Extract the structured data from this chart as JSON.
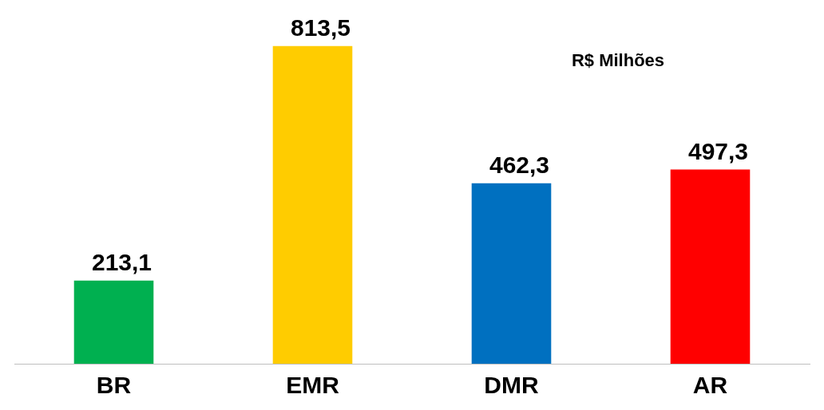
{
  "chart_data": {
    "type": "bar",
    "categories": [
      "BR",
      "EMR",
      "DMR",
      "AR"
    ],
    "values": [
      213.1,
      813.5,
      462.3,
      497.3
    ],
    "colors": [
      "#00b050",
      "#ffcc00",
      "#0070c0",
      "#ff0000"
    ],
    "value_labels": [
      "213,1",
      "813,5",
      "462,3",
      "497,3"
    ],
    "annotations": [
      "R$ Milhões"
    ],
    "grid": false,
    "legend": false
  }
}
